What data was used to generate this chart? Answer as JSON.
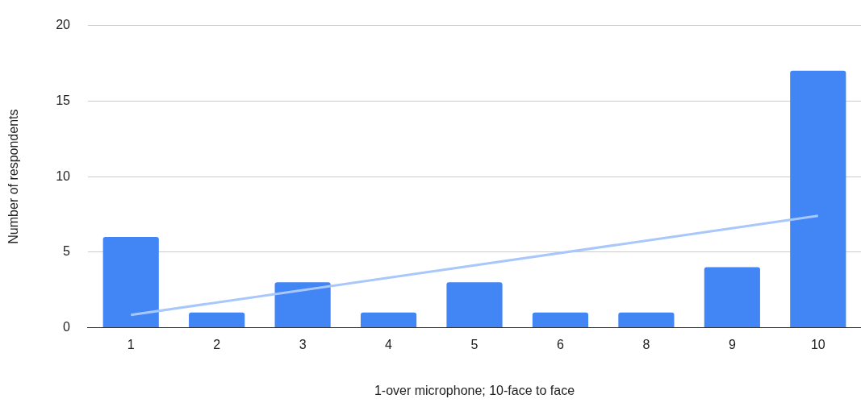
{
  "chart_data": {
    "type": "bar",
    "xlabel": "1-over microphone; 10-face to face",
    "ylabel": "Number of respondents",
    "categories": [
      "1",
      "2",
      "3",
      "4",
      "5",
      "6",
      "8",
      "9",
      "10"
    ],
    "series": [
      {
        "color": "#4285f4",
        "values": [
          6,
          1,
          3,
          1,
          3,
          1,
          1,
          4,
          17
        ]
      },
      {
        "type": "line",
        "color": "#a8c7fa",
        "x": [
          "1",
          "10"
        ],
        "values": [
          0.85,
          7.4
        ]
      }
    ],
    "ylim": [
      0,
      20
    ],
    "yticks": [
      0,
      5,
      10,
      15,
      20
    ],
    "grid": "y"
  }
}
